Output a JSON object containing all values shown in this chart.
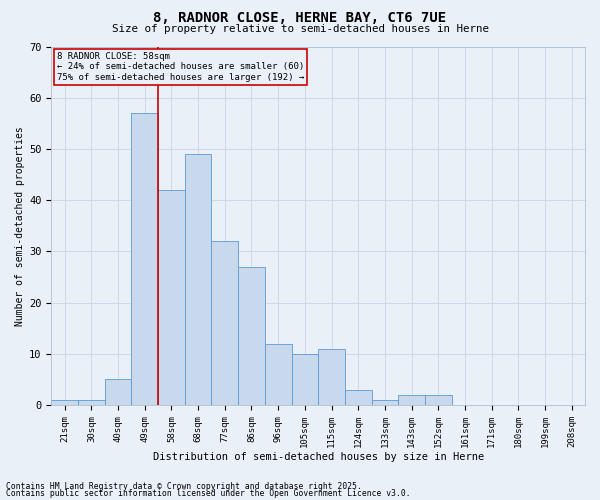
{
  "title1": "8, RADNOR CLOSE, HERNE BAY, CT6 7UE",
  "title2": "Size of property relative to semi-detached houses in Herne",
  "xlabel": "Distribution of semi-detached houses by size in Herne",
  "ylabel": "Number of semi-detached properties",
  "categories": [
    "21sqm",
    "30sqm",
    "40sqm",
    "49sqm",
    "58sqm",
    "68sqm",
    "77sqm",
    "86sqm",
    "96sqm",
    "105sqm",
    "115sqm",
    "124sqm",
    "133sqm",
    "143sqm",
    "152sqm",
    "161sqm",
    "171sqm",
    "180sqm",
    "199sqm",
    "208sqm"
  ],
  "values": [
    1,
    1,
    5,
    57,
    42,
    49,
    32,
    27,
    12,
    10,
    11,
    3,
    1,
    2,
    2,
    0,
    0,
    0,
    0,
    0
  ],
  "bar_color": "#c9d9ed",
  "bar_edge_color": "#5b9bd5",
  "grid_color": "#d0d8e8",
  "background_color": "#eaf0f8",
  "vline_color": "#cc0000",
  "annotation_text": "8 RADNOR CLOSE: 58sqm\n← 24% of semi-detached houses are smaller (60)\n75% of semi-detached houses are larger (192) →",
  "annotation_box_color": "#cc0000",
  "footer1": "Contains HM Land Registry data © Crown copyright and database right 2025.",
  "footer2": "Contains public sector information licensed under the Open Government Licence v3.0.",
  "ylim": [
    0,
    70
  ],
  "yticks": [
    0,
    10,
    20,
    30,
    40,
    50,
    60,
    70
  ]
}
